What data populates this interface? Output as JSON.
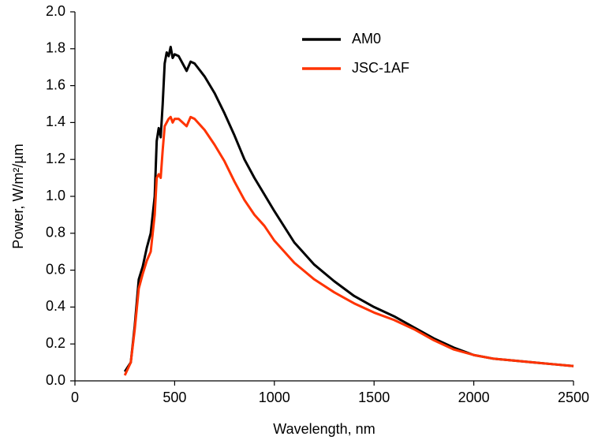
{
  "chart_data": {
    "type": "line",
    "x_label": "Wavelength, nm",
    "y_label": "Power, W/m²/µm",
    "x": [
      250,
      280,
      300,
      320,
      340,
      360,
      380,
      400,
      410,
      420,
      430,
      440,
      450,
      460,
      470,
      480,
      490,
      500,
      520,
      540,
      560,
      580,
      600,
      650,
      700,
      750,
      800,
      850,
      900,
      950,
      1000,
      1100,
      1200,
      1300,
      1400,
      1500,
      1600,
      1700,
      1800,
      1900,
      2000,
      2100,
      2200,
      2300,
      2400,
      2500
    ],
    "series": [
      {
        "name": "AM0",
        "color": "#000000",
        "values": [
          0.05,
          0.1,
          0.3,
          0.55,
          0.62,
          0.72,
          0.8,
          1.0,
          1.3,
          1.37,
          1.32,
          1.5,
          1.72,
          1.78,
          1.76,
          1.81,
          1.75,
          1.77,
          1.76,
          1.72,
          1.68,
          1.73,
          1.72,
          1.65,
          1.56,
          1.45,
          1.33,
          1.2,
          1.1,
          1.01,
          0.92,
          0.75,
          0.63,
          0.54,
          0.46,
          0.4,
          0.35,
          0.29,
          0.23,
          0.18,
          0.14,
          0.12,
          0.11,
          0.1,
          0.09,
          0.08
        ]
      },
      {
        "name": "JSC-1AF",
        "color": "#ff3300",
        "values": [
          0.03,
          0.1,
          0.28,
          0.5,
          0.58,
          0.65,
          0.7,
          0.9,
          1.1,
          1.12,
          1.1,
          1.25,
          1.38,
          1.4,
          1.42,
          1.43,
          1.4,
          1.42,
          1.42,
          1.4,
          1.38,
          1.43,
          1.42,
          1.36,
          1.28,
          1.19,
          1.08,
          0.98,
          0.9,
          0.84,
          0.76,
          0.64,
          0.55,
          0.48,
          0.42,
          0.37,
          0.33,
          0.28,
          0.22,
          0.17,
          0.14,
          0.12,
          0.11,
          0.1,
          0.09,
          0.08
        ]
      }
    ],
    "xlim": [
      0,
      2500
    ],
    "xticks": [
      0,
      500,
      1000,
      1500,
      2000,
      2500
    ],
    "ylim": [
      0,
      2
    ],
    "yticks": [
      {
        "value": 0,
        "label": "0.0"
      },
      0.2,
      0.4,
      0.6,
      0.8,
      {
        "value": 1,
        "label": "1.0"
      },
      1.2,
      1.4,
      1.6,
      1.8,
      {
        "value": 2,
        "label": "2.0"
      }
    ],
    "grid": false
  }
}
